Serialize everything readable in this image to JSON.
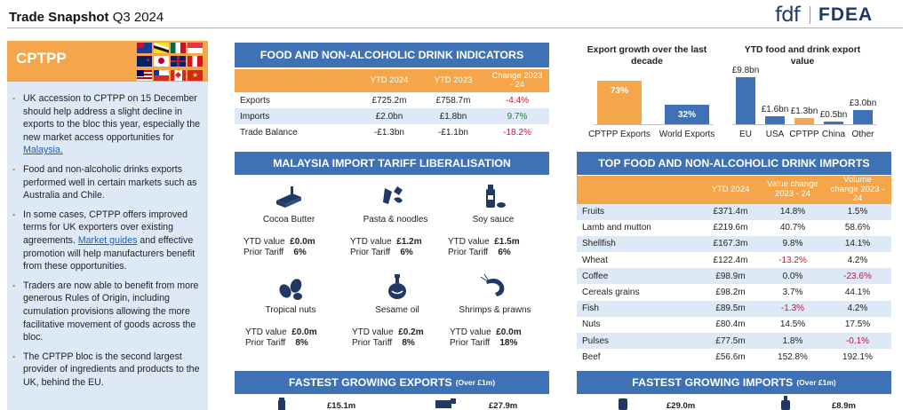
{
  "header": {
    "title_bold": "Trade Snapshot",
    "title_rest": " Q3 2024",
    "logo_fdf": "fdf",
    "logo_fdea": "FDEA"
  },
  "sidebar": {
    "title": "CPTPP",
    "bullets": [
      {
        "text": "UK accession to CPTPP on 15 December should help address a slight decline in exports to the bloc this year, especially the new market access opportunities for ",
        "link": "Malaysia.",
        "after": ""
      },
      {
        "text": "Food and non-alcoholic drinks exports performed well in certain markets such as Australia and Chile.",
        "link": "",
        "after": ""
      },
      {
        "text": "In some cases, CPTPP offers improved terms for UK exporters over existing agreements. ",
        "link": "Market guides",
        "after": " and effective promotion will help manufacturers benefit from these opportunities."
      },
      {
        "text": "Traders are now able to benefit from more generous Rules of Origin, including cumulation provisions allowing the more facilitative movement of goods across the bloc.",
        "link": "",
        "after": ""
      },
      {
        "text": "The CPTPP bloc is the second largest provider of ingredients and products to the UK, behind the EU.",
        "link": "",
        "after": ""
      }
    ]
  },
  "indicators": {
    "title": "FOOD AND NON-ALCOHOLIC DRINK INDICATORS",
    "headers": [
      "",
      "YTD 2024",
      "YTD 2023",
      "Change 2023 - 24"
    ],
    "rows": [
      {
        "label": "Exports",
        "ytd2024": "£725.2m",
        "ytd2023": "£758.7m",
        "change": "-4.4%",
        "dir": "neg"
      },
      {
        "label": "Imports",
        "ytd2024": "£2.0bn",
        "ytd2023": "£1.8bn",
        "change": "9.7%",
        "dir": "pos"
      },
      {
        "label": "Trade Balance",
        "ytd2024": "-£1.3bn",
        "ytd2023": "-£1.1bn",
        "change": "-18.2%",
        "dir": "neg"
      }
    ]
  },
  "tariff": {
    "title": "MALAYSIA IMPORT TARIFF LIBERALISATION",
    "ytd_label": "YTD value",
    "tariff_label": "Prior Tariff",
    "items": [
      {
        "name": "Cocoa Butter",
        "ytd": "£0.0m",
        "tariff": "6%",
        "icon": "cocoa-butter-icon"
      },
      {
        "name": "Pasta & noodles",
        "ytd": "£1.2m",
        "tariff": "6%",
        "icon": "pasta-icon"
      },
      {
        "name": "Soy sauce",
        "ytd": "£1.5m",
        "tariff": "6%",
        "icon": "soy-sauce-icon"
      },
      {
        "name": "Tropical nuts",
        "ytd": "£0.0m",
        "tariff": "8%",
        "icon": "nuts-icon"
      },
      {
        "name": "Sesame oil",
        "ytd": "£0.2m",
        "tariff": "8%",
        "icon": "oil-bottle-icon"
      },
      {
        "name": "Shrimps & prawns",
        "ytd": "£0.0m",
        "tariff": "18%",
        "icon": "shrimp-icon"
      }
    ]
  },
  "chart_data": [
    {
      "type": "bar",
      "title": "Export growth over the last decade",
      "categories": [
        "CPTPP Exports",
        "World Exports"
      ],
      "values": [
        73,
        32
      ],
      "value_labels": [
        "73%",
        "32%"
      ],
      "colors": [
        "#f5a54a",
        "#3e72b5"
      ],
      "ylim": [
        0,
        80
      ]
    },
    {
      "type": "bar",
      "title": "YTD food and drink export value",
      "categories": [
        "EU",
        "USA",
        "CPTPP",
        "China",
        "Other"
      ],
      "values": [
        9.8,
        1.6,
        1.3,
        0.5,
        3.0
      ],
      "value_labels": [
        "£9.8bn",
        "£1.6bn",
        "£1.3bn",
        "£0.5bn",
        "£3.0bn"
      ],
      "colors": [
        "#3e72b5",
        "#3e72b5",
        "#f5a54a",
        "#3e72b5",
        "#3e72b5"
      ],
      "ylim": [
        0,
        10
      ]
    }
  ],
  "imports": {
    "title": "TOP FOOD AND NON-ALCOHOLIC DRINK IMPORTS",
    "headers": [
      "",
      "YTD 2024",
      "Value change 2023 - 24",
      "Volume change 2023 - 24"
    ],
    "rows": [
      {
        "label": "Fruits",
        "ytd": "£371.4m",
        "value": "14.8%",
        "vd": "pos",
        "volume": "1.5%",
        "vod": "pos"
      },
      {
        "label": "Lamb and mutton",
        "ytd": "£219.6m",
        "value": "40.7%",
        "vd": "pos",
        "volume": "58.6%",
        "vod": "pos"
      },
      {
        "label": "Shellfish",
        "ytd": "£167.3m",
        "value": "9.8%",
        "vd": "pos",
        "volume": "14.1%",
        "vod": "pos"
      },
      {
        "label": "Wheat",
        "ytd": "£122.4m",
        "value": "-13.2%",
        "vd": "neg",
        "volume": "4.2%",
        "vod": "pos"
      },
      {
        "label": "Coffee",
        "ytd": "£98.9m",
        "value": "0.0%",
        "vd": "pos",
        "volume": "-23.6%",
        "vod": "neg"
      },
      {
        "label": "Cereals grains",
        "ytd": "£98.2m",
        "value": "3.7%",
        "vd": "pos",
        "volume": "44.1%",
        "vod": "pos"
      },
      {
        "label": "Fish",
        "ytd": "£89.5m",
        "value": "-1.3%",
        "vd": "neg",
        "volume": "4.2%",
        "vod": "pos"
      },
      {
        "label": "Nuts",
        "ytd": "£80.4m",
        "value": "14.5%",
        "vd": "pos",
        "volume": "17.5%",
        "vod": "pos"
      },
      {
        "label": "Pulses",
        "ytd": "£77.5m",
        "value": "1.8%",
        "vd": "pos",
        "volume": "-0.1%",
        "vod": "neg"
      },
      {
        "label": "Beef",
        "ytd": "£56.6m",
        "value": "152.8%",
        "vd": "pos",
        "volume": "192.1%",
        "vod": "pos"
      }
    ]
  },
  "fastest_exports": {
    "title": "FASTEST GROWING EXPORTS",
    "subtitle": "(Over £1m)",
    "values": [
      "£15.1m",
      "£27.9m"
    ]
  },
  "fastest_imports": {
    "title": "FASTEST GROWING IMPORTS",
    "subtitle": "(Over £1m)",
    "values": [
      "£29.0m",
      "£8.9m"
    ]
  },
  "colors": {
    "accent_blue": "#3e72b5",
    "accent_orange": "#f5a54a",
    "panel_bg": "#dde9f7",
    "negative": "#d0103a",
    "positive": "#2e7d32"
  }
}
